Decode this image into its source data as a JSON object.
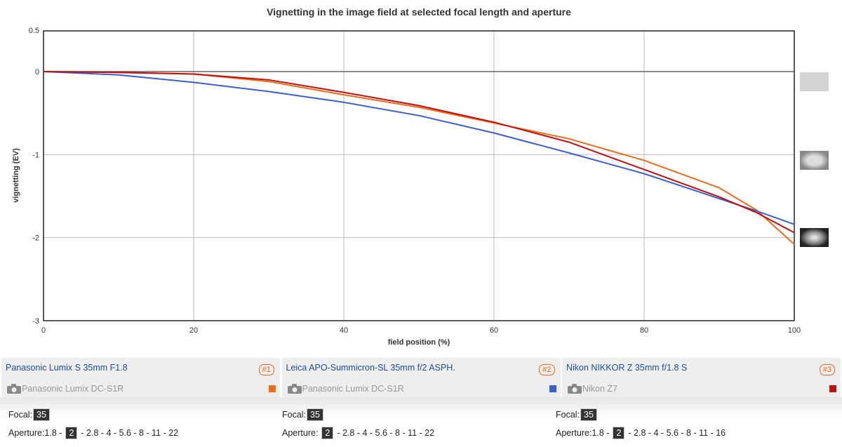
{
  "chart_data": {
    "type": "line",
    "title": "Vignetting in the image field at selected focal length and aperture",
    "xlabel": "field position (%)",
    "ylabel": "vignetting (EV)",
    "xlim": [
      0,
      100
    ],
    "ylim": [
      -3,
      0.5
    ],
    "xticks": [
      0,
      20,
      40,
      60,
      80,
      100
    ],
    "yticks": [
      0.5,
      0,
      -1,
      -2,
      -3
    ],
    "yticklabels": [
      "0.5",
      "0",
      "-1",
      "-2",
      "-3"
    ],
    "grid": true,
    "x": [
      0,
      10,
      20,
      30,
      40,
      50,
      60,
      70,
      80,
      90,
      95,
      100
    ],
    "series": [
      {
        "name": "#1",
        "color": "#f06a1a",
        "values": [
          0,
          -0.01,
          -0.03,
          -0.12,
          -0.28,
          -0.43,
          -0.62,
          -0.81,
          -1.07,
          -1.4,
          -1.67,
          -2.08
        ]
      },
      {
        "name": "#2",
        "color": "#3a5fd0",
        "values": [
          0,
          -0.04,
          -0.13,
          -0.24,
          -0.37,
          -0.53,
          -0.74,
          -0.98,
          -1.23,
          -1.53,
          -1.68,
          -1.84
        ]
      },
      {
        "name": "#3",
        "color": "#c01010",
        "values": [
          0,
          -0.01,
          -0.03,
          -0.1,
          -0.25,
          -0.41,
          -0.61,
          -0.85,
          -1.18,
          -1.51,
          -1.7,
          -1.94
        ]
      }
    ]
  },
  "lenses": [
    {
      "name": "Panasonic Lumix S 35mm F1.8",
      "camera": "Panasonic Lumix DC-S1R",
      "badge": "#1",
      "color": "#f06a1a",
      "focal": "35",
      "ap_before": "1.8 - ",
      "ap_sel": "2",
      "ap_after": "- 2.8 - 4 - 5.6 - 8 - 11 - 22"
    },
    {
      "name": "Leica APO-Summicron-SL 35mm f/2 ASPH.",
      "camera": "Panasonic Lumix DC-S1R",
      "badge": "#2",
      "color": "#3a5fd0",
      "focal": "35",
      "ap_before": "",
      "ap_sel": "2",
      "ap_after": "- 2.8 - 4 - 5.6 - 8 - 11 - 22"
    },
    {
      "name": "Nikon NIKKOR Z 35mm f/1.8 S",
      "camera": "Nikon Z7",
      "badge": "#3",
      "color": "#c01010",
      "focal": "35",
      "ap_before": "1.8 - ",
      "ap_sel": "2",
      "ap_after": "- 2.8 - 4 - 5.6 - 8 - 11 - 16"
    }
  ],
  "labels": {
    "focal": "Focal:",
    "aperture": "Aperture: "
  }
}
